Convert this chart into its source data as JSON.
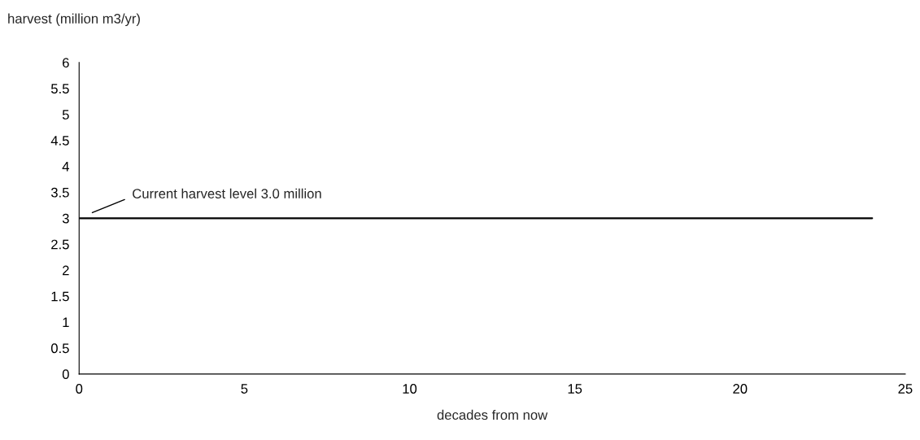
{
  "chart_data": {
    "type": "line",
    "xlabel": "decades from now",
    "ylabel": "harvest (million m3/yr)",
    "x": [
      0,
      24
    ],
    "series": [
      {
        "color": "#000000",
        "values": [
          3,
          3
        ]
      }
    ],
    "annotations": [
      "Current harvest level 3.0 million"
    ],
    "xlim": [
      0,
      25
    ],
    "xticks": [
      0,
      5,
      10,
      15,
      20,
      25
    ],
    "ylim": [
      0,
      6
    ],
    "yticks": [
      0,
      0.5,
      1,
      1.5,
      2,
      2.5,
      3,
      3.5,
      4,
      4.5,
      5,
      5.5,
      6
    ],
    "grid": false,
    "legend": false,
    "marker": "none",
    "line_style": "solid"
  }
}
